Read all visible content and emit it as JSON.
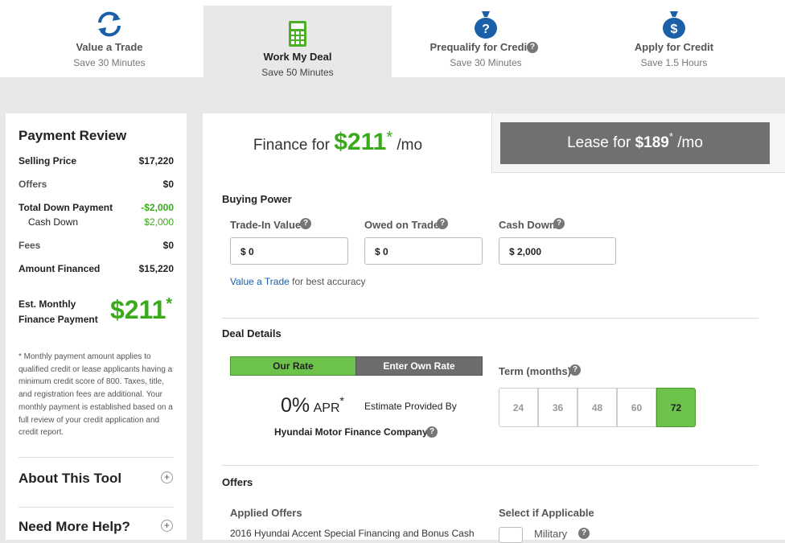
{
  "tabs": [
    {
      "title": "Value a Trade",
      "subtitle": "Save 30 Minutes"
    },
    {
      "title": "Work My Deal",
      "subtitle": "Save 50 Minutes"
    },
    {
      "title": "Prequalify for Credit",
      "subtitle": "Save 30 Minutes"
    },
    {
      "title": "Apply for Credit",
      "subtitle": "Save 1.5 Hours"
    }
  ],
  "finance": {
    "prefix": "Finance for",
    "amount": "$211",
    "star": "*",
    "suffix": "/mo"
  },
  "lease": {
    "prefix": "Lease for",
    "amount": "$189",
    "star": "*",
    "suffix": "/mo"
  },
  "payment_review": {
    "title": "Payment Review",
    "rows": [
      [
        "Selling Price",
        "$17,220"
      ],
      [
        "Offers",
        "$0"
      ],
      [
        "Total Down Payment",
        "-$2,000"
      ],
      [
        "Cash Down",
        "$2,000"
      ],
      [
        "Fees",
        "$0"
      ],
      [
        "Amount Financed",
        "$15,220"
      ]
    ],
    "monthly_label_1": "Est. Monthly",
    "monthly_label_2": "Finance Payment",
    "monthly_value": "$211",
    "monthly_star": "*",
    "footnote": "* Monthly payment amount applies to qualified credit or lease applicants having a minimum credit score of 800.  Taxes, title, and registration fees are additional. Your monthly payment is established based on a full review of your credit application and credit report."
  },
  "about": "About This Tool",
  "help": "Need More Help?",
  "buying_power": {
    "title": "Buying Power",
    "fields": [
      {
        "label": "Trade-In Value",
        "value": "$ 0"
      },
      {
        "label": "Owed on Trade",
        "value": "$ 0"
      },
      {
        "label": "Cash Down",
        "value": "$ 2,000"
      }
    ],
    "link": "Value a Trade",
    "link_suffix": "for best accuracy"
  },
  "deal_details": {
    "title": "Deal Details",
    "buttons": [
      "Our Rate",
      "Enter Own Rate"
    ],
    "rate": "0%",
    "apr": "APR",
    "star": "*",
    "estimate": "Estimate Provided By",
    "lender": "Hyundai Motor Finance Company",
    "term_label": "Term (months)",
    "terms": [
      24,
      36,
      48,
      60,
      72
    ]
  },
  "offers": {
    "title": "Offers",
    "applied": "Applied Offers",
    "offer": "2016 Hyundai Accent Special Financing and Bonus Cash",
    "select": "Select if Applicable",
    "military": "Military"
  }
}
